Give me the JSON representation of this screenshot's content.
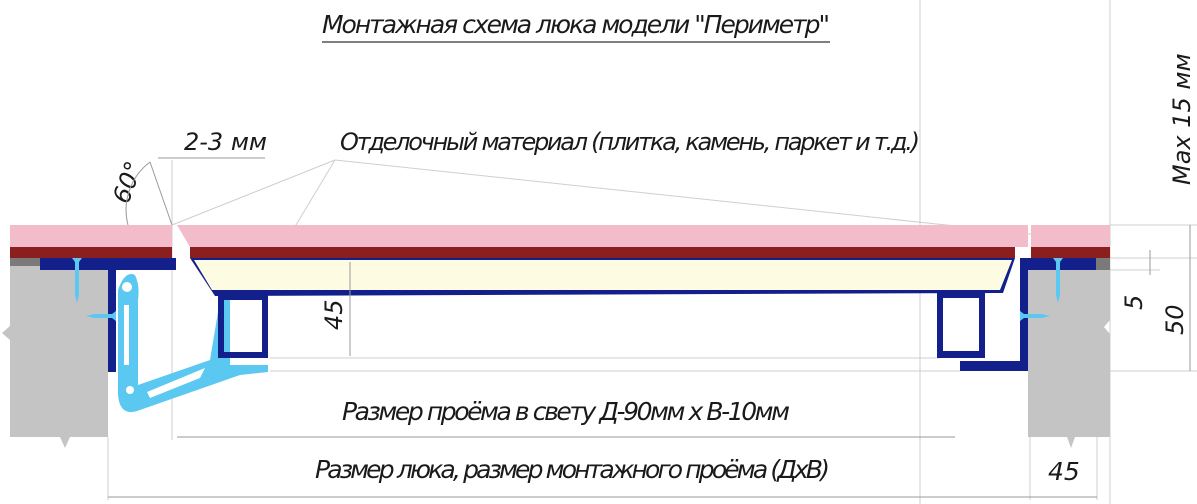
{
  "title": "Монтажная схема люка модели \"Периметр\"",
  "labels": {
    "gap": "2-3 мм",
    "angle": "60°",
    "finish_material": "Отделочный материал (плитка, камень, паркет и т.д.)",
    "max_thickness": "Max 15 мм",
    "frame_height": "45",
    "dim_5": "5",
    "dim_50": "50",
    "clear_opening": "Размер проёма в свету Д-90мм х В-10мм",
    "hatch_size": "Размер люка, размер монтажного проёма (ДхВ)",
    "wall_45": "45"
  },
  "colors": {
    "tile": "#f2bccb",
    "adhesive": "#8b1e1e",
    "panel": "#fefbe3",
    "frame": "#13208c",
    "bracket": "#5bc8f2",
    "wall": "#c4c4c4"
  }
}
